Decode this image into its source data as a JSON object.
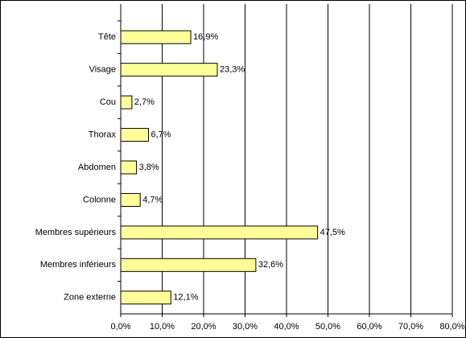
{
  "chart_data": {
    "type": "bar",
    "orientation": "horizontal",
    "categories": [
      "Tête",
      "Visage",
      "Cou",
      "Thorax",
      "Abdomen",
      "Colonne",
      "Membres supérieurs",
      "Membres inférieurs",
      "Zone externe"
    ],
    "values": [
      16.9,
      23.3,
      2.7,
      6.7,
      3.8,
      4.7,
      47.5,
      32.6,
      12.1
    ],
    "value_labels": [
      "16,9%",
      "23,3%",
      "2,7%",
      "6,7%",
      "3,8%",
      "4,7%",
      "47,5%",
      "32,6%",
      "12,1%"
    ],
    "color": "#ffff99",
    "xlim": [
      0,
      80
    ],
    "xticks": [
      {
        "value": 0,
        "label": "0,0%"
      },
      {
        "value": 10,
        "label": "10,0%"
      },
      {
        "value": 20,
        "label": "20,0%"
      },
      {
        "value": 30,
        "label": "30,0%"
      },
      {
        "value": 40,
        "label": "40,0%"
      },
      {
        "value": 50,
        "label": "50,0%"
      },
      {
        "value": 60,
        "label": "60,0%"
      },
      {
        "value": 70,
        "label": "70,0%"
      },
      {
        "value": 80,
        "label": "80,0%"
      }
    ],
    "grid": true
  }
}
